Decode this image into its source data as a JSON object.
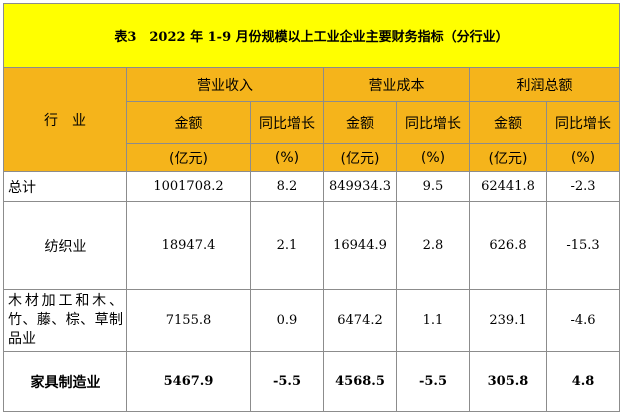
{
  "title": "表3　2022 年 1-9 月份规模以上工业企业主要财务指标（分行业）",
  "header": {
    "industry": "行　业",
    "groups": [
      "营业收入",
      "营业成本",
      "利润总额"
    ],
    "amount": "金额",
    "yoy": "同比增长",
    "unit_amount": "(亿元)",
    "unit_pct": "(%)"
  },
  "rows": [
    {
      "name": "总计",
      "rev": "1001708.2",
      "rev_yoy": "8.2",
      "cost": "849934.3",
      "cost_yoy": "9.5",
      "profit": "62441.8",
      "profit_yoy": "-2.3"
    },
    {
      "name": "纺织业",
      "rev": "18947.4",
      "rev_yoy": "2.1",
      "cost": "16944.9",
      "cost_yoy": "2.8",
      "profit": "626.8",
      "profit_yoy": "-15.3"
    },
    {
      "name": "木材加工和木、竹、藤、棕、草制品业",
      "rev": "7155.8",
      "rev_yoy": "0.9",
      "cost": "6474.2",
      "cost_yoy": "1.1",
      "profit": "239.1",
      "profit_yoy": "-4.6"
    },
    {
      "name": "家具制造业",
      "rev": "5467.9",
      "rev_yoy": "-5.5",
      "cost": "4568.5",
      "cost_yoy": "-5.5",
      "profit": "305.8",
      "profit_yoy": "4.8"
    }
  ]
}
